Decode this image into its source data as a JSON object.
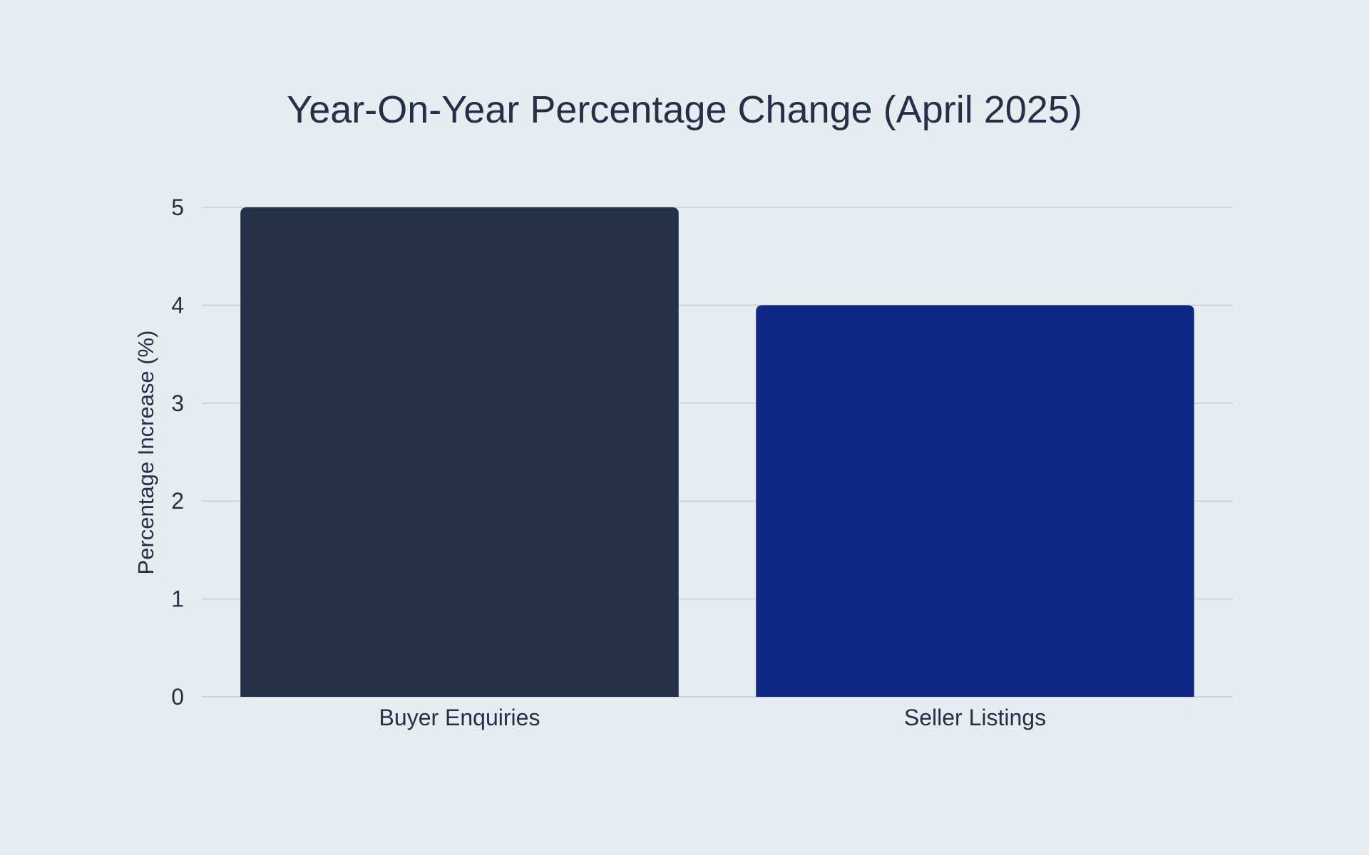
{
  "chart_data": {
    "type": "bar",
    "title": "Year-On-Year Percentage Change (April 2025)",
    "xlabel": "",
    "ylabel": "Percentage Increase (%)",
    "categories": [
      "Buyer Enquiries",
      "Seller Listings"
    ],
    "values": [
      5,
      4
    ],
    "bar_colors": [
      "#243048",
      "#102885"
    ],
    "ylim": [
      0,
      5
    ],
    "yticks": [
      0,
      1,
      2,
      3,
      4,
      5
    ],
    "grid": true,
    "legend": "none"
  }
}
